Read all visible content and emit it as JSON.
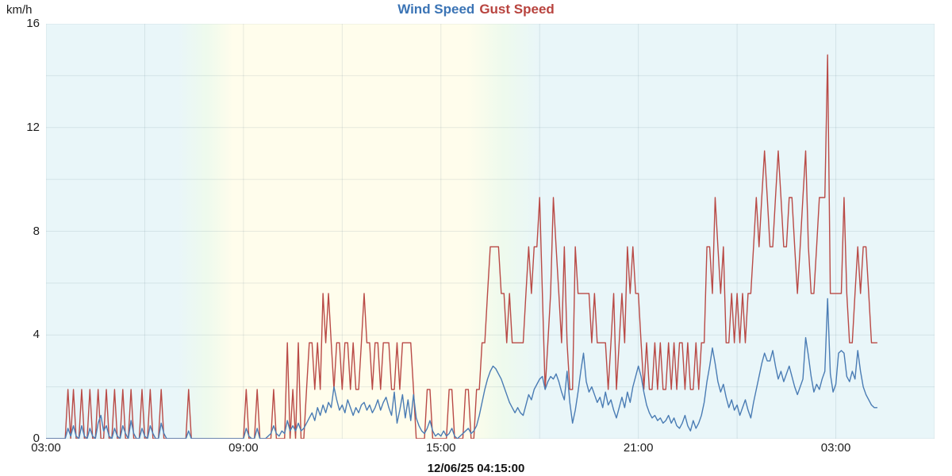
{
  "header": {
    "y_unit": "km/h",
    "title_parts": [
      {
        "label": "Wind Speed",
        "color": "#3b74b5"
      },
      {
        "label": "Gust Speed",
        "color": "#b8433e"
      }
    ]
  },
  "footer": {
    "timestamp": "12/06/25 04:15:00"
  },
  "chart_data": {
    "type": "line",
    "title": "Wind Speed Gust Speed",
    "y_unit": "km/h",
    "ylim": [
      0,
      16
    ],
    "y_ticks": [
      0,
      4,
      8,
      12,
      16
    ],
    "y_minor_step": 2,
    "x_range_hours": [
      3,
      30
    ],
    "x_minor_step_hours": 3,
    "x_ticks": [
      {
        "t": 3,
        "label": "03:00"
      },
      {
        "t": 9,
        "label": "09:00"
      },
      {
        "t": 15,
        "label": "15:00"
      },
      {
        "t": 21,
        "label": "21:00"
      },
      {
        "t": 27,
        "label": "03:00"
      }
    ],
    "x_start_hour": 3,
    "x_step_minutes": 5,
    "grid_color": "#64828c",
    "grid_opacity": 0.16,
    "background_stops": [
      {
        "pos": 0.0,
        "color": "#e9f6f9"
      },
      {
        "pos": 0.148,
        "color": "#e9f6f9"
      },
      {
        "pos": 0.18,
        "color": "#eefaed"
      },
      {
        "pos": 0.211,
        "color": "#fffdec"
      },
      {
        "pos": 0.474,
        "color": "#fffdec"
      },
      {
        "pos": 0.515,
        "color": "#eefaed"
      },
      {
        "pos": 0.556,
        "color": "#e9f6f9"
      },
      {
        "pos": 1.0,
        "color": "#e9f6f9"
      }
    ],
    "series": [
      {
        "name": "Wind Speed",
        "color": "#4a7cb4",
        "values": [
          0,
          0,
          0,
          0,
          0,
          0,
          0,
          0,
          0.4,
          0.1,
          0.5,
          0.1,
          0,
          0.5,
          0.1,
          0,
          0.4,
          0.1,
          0,
          0.6,
          0.9,
          0.3,
          0.5,
          0.1,
          0,
          0.4,
          0.1,
          0,
          0.5,
          0.2,
          0,
          0.7,
          0.2,
          0,
          0,
          0.4,
          0.1,
          0,
          0.5,
          0.2,
          0,
          0,
          0.6,
          0.2,
          0,
          0,
          0,
          0,
          0,
          0,
          0,
          0,
          0.3,
          0,
          0,
          0,
          0,
          0,
          0,
          0,
          0,
          0,
          0,
          0,
          0,
          0,
          0,
          0,
          0,
          0,
          0,
          0,
          0,
          0.4,
          0.1,
          0,
          0,
          0.4,
          0,
          0,
          0,
          0.1,
          0.2,
          0.5,
          0.2,
          0.1,
          0.3,
          0.2,
          0.7,
          0.3,
          0.5,
          0.3,
          0.6,
          0.3,
          0.4,
          0.6,
          0.8,
          1,
          0.7,
          1.2,
          0.9,
          1.3,
          1,
          1.4,
          1.2,
          2,
          1.5,
          1.1,
          1.3,
          1,
          1.5,
          1.2,
          0.9,
          1.2,
          1,
          1.3,
          1.4,
          1.1,
          1.3,
          1,
          1.2,
          1.5,
          1.1,
          1.4,
          1.6,
          1.2,
          0.9,
          1.8,
          0.6,
          1.1,
          1.7,
          0.8,
          1.5,
          0.7,
          1.7,
          0.8,
          0.5,
          0.3,
          0.2,
          0.4,
          0.7,
          0.3,
          0.1,
          0.2,
          0.1,
          0.3,
          0.1,
          0.2,
          0.4,
          0.1,
          0,
          0.1,
          0.2,
          0.3,
          0.4,
          0.2,
          0.3,
          0.5,
          0.9,
          1.4,
          1.9,
          2.3,
          2.6,
          2.8,
          2.7,
          2.5,
          2.3,
          2,
          1.7,
          1.4,
          1.2,
          1,
          1.2,
          1,
          0.9,
          1.3,
          1.7,
          1.5,
          1.9,
          2.1,
          2.3,
          2.4,
          1.9,
          2.2,
          2.4,
          2.3,
          2.5,
          2.2,
          1.8,
          1.5,
          2.6,
          1.4,
          0.6,
          1.1,
          1.8,
          2.6,
          3.3,
          2.2,
          1.8,
          2,
          1.7,
          1.4,
          1.6,
          1.2,
          1.8,
          1.3,
          1.5,
          1.1,
          0.8,
          1.2,
          1.6,
          1.2,
          1.8,
          1.4,
          2,
          2.4,
          2.8,
          2.4,
          1.8,
          1.3,
          1,
          0.8,
          0.9,
          0.7,
          0.8,
          0.6,
          0.7,
          0.9,
          0.6,
          0.8,
          0.5,
          0.4,
          0.6,
          0.9,
          0.5,
          0.3,
          0.7,
          0.4,
          0.6,
          0.9,
          1.4,
          2.2,
          2.8,
          3.5,
          2.9,
          2.2,
          1.8,
          2.1,
          1.6,
          1.2,
          1.5,
          1.1,
          1.3,
          0.9,
          1.2,
          1.5,
          1.1,
          0.8,
          1.4,
          1.9,
          2.4,
          2.9,
          3.3,
          3,
          3,
          3.4,
          2.8,
          2.3,
          2.6,
          2.2,
          2.5,
          2.8,
          2.4,
          2,
          1.7,
          2,
          2.3,
          3.9,
          3.2,
          2.4,
          1.8,
          2.1,
          1.9,
          2.3,
          2.6,
          5.4,
          2.5,
          1.8,
          2.1,
          3.3,
          3.4,
          3.3,
          2.4,
          2.2,
          2.6,
          2.3,
          3.4,
          2.6,
          2,
          1.7,
          1.5,
          1.3,
          1.2,
          1.2
        ]
      },
      {
        "name": "Gust Speed",
        "color": "#b94a46",
        "values": [
          0,
          0,
          0,
          0,
          0,
          0,
          0,
          0,
          1.9,
          0,
          1.9,
          0,
          0,
          1.9,
          0,
          0,
          1.9,
          0,
          0,
          1.9,
          0,
          0,
          1.9,
          0,
          0,
          1.9,
          0,
          0,
          1.9,
          0,
          0,
          1.9,
          0,
          0,
          0,
          1.9,
          0,
          0,
          1.9,
          0,
          0,
          0,
          1.9,
          0,
          0,
          0,
          0,
          0,
          0,
          0,
          0,
          0,
          1.9,
          0,
          0,
          0,
          0,
          0,
          0,
          0,
          0,
          0,
          0,
          0,
          0,
          0,
          0,
          0,
          0,
          0,
          0,
          0,
          0,
          1.9,
          0,
          0,
          0,
          1.9,
          0,
          0,
          0,
          0,
          0,
          1.9,
          0,
          0,
          0,
          0,
          3.7,
          0,
          1.9,
          0,
          3.7,
          0,
          0,
          1.9,
          3.7,
          3.7,
          1.9,
          3.7,
          1.9,
          5.6,
          3.7,
          5.6,
          3.7,
          1.9,
          3.7,
          3.7,
          1.9,
          3.7,
          3.7,
          1.9,
          3.7,
          1.9,
          1.9,
          3.7,
          5.6,
          3.7,
          3.7,
          1.9,
          3.7,
          3.7,
          1.9,
          3.7,
          3.7,
          3.7,
          1.9,
          1.9,
          3.7,
          1.9,
          3.7,
          3.7,
          3.7,
          3.7,
          1.9,
          0,
          0,
          0,
          0,
          1.9,
          1.9,
          0,
          0,
          0,
          0,
          0,
          0,
          1.9,
          1.9,
          0,
          0,
          0,
          0,
          1.9,
          1.9,
          0,
          0,
          1.9,
          1.9,
          3.7,
          3.7,
          5.6,
          7.4,
          7.4,
          7.4,
          7.4,
          5.6,
          5.6,
          3.7,
          5.6,
          3.7,
          3.7,
          3.7,
          3.7,
          3.7,
          5.6,
          7.4,
          5.6,
          7.4,
          7.4,
          9.3,
          5.6,
          1.9,
          3.7,
          5.6,
          9.3,
          7.4,
          5.6,
          3.7,
          7.4,
          3.7,
          1.9,
          1.9,
          7.4,
          5.6,
          5.6,
          5.6,
          5.6,
          5.6,
          3.7,
          5.6,
          3.7,
          3.7,
          3.7,
          3.7,
          1.9,
          3.7,
          5.6,
          1.9,
          3.7,
          5.6,
          3.7,
          7.4,
          5.6,
          7.4,
          5.6,
          5.6,
          3.7,
          1.9,
          3.7,
          1.9,
          1.9,
          3.7,
          1.9,
          3.7,
          1.9,
          1.9,
          3.7,
          1.9,
          3.7,
          1.9,
          3.7,
          3.7,
          1.9,
          3.7,
          1.9,
          1.9,
          3.7,
          1.9,
          3.7,
          3.7,
          7.4,
          7.4,
          5.6,
          9.3,
          7.4,
          5.6,
          7.4,
          3.7,
          3.7,
          5.6,
          3.7,
          5.6,
          3.7,
          5.6,
          3.7,
          5.6,
          5.6,
          7.4,
          9.3,
          7.4,
          9.3,
          11.1,
          9.3,
          7.4,
          7.4,
          9.3,
          11.1,
          9.3,
          7.4,
          7.4,
          9.3,
          9.3,
          7.4,
          5.6,
          7.4,
          9.3,
          11.1,
          7.4,
          5.6,
          5.6,
          7.4,
          9.3,
          9.3,
          9.3,
          14.8,
          5.6,
          5.6,
          5.6,
          5.6,
          5.6,
          9.3,
          5.6,
          3.7,
          3.7,
          5.6,
          7.4,
          5.6,
          7.4,
          7.4,
          5.6,
          3.7,
          3.7,
          3.7
        ]
      }
    ]
  }
}
